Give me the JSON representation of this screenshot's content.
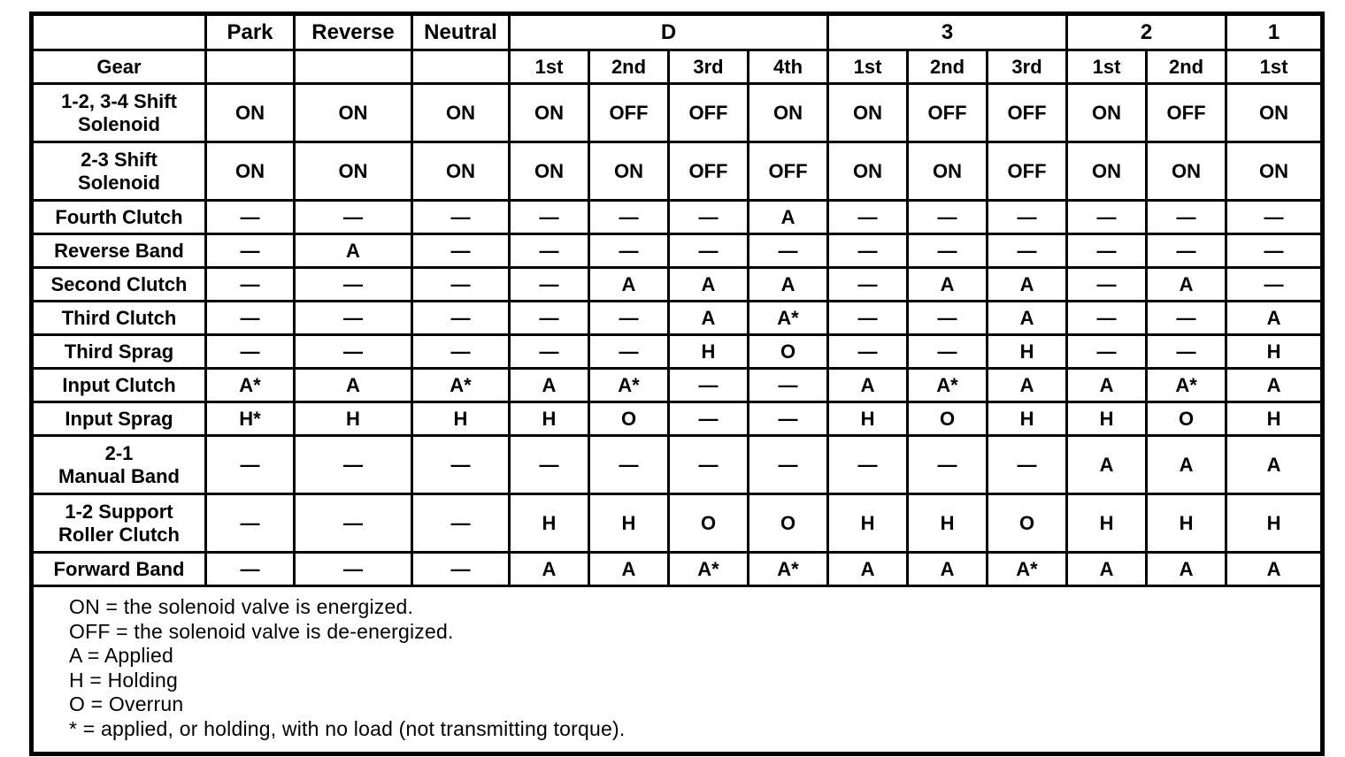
{
  "table": {
    "corner_label": "",
    "gear_label": "Gear",
    "range_groups": [
      {
        "label": "Park",
        "span": 1
      },
      {
        "label": "Reverse",
        "span": 1
      },
      {
        "label": "Neutral",
        "span": 1
      },
      {
        "label": "D",
        "span": 4
      },
      {
        "label": "3",
        "span": 3
      },
      {
        "label": "2",
        "span": 2
      },
      {
        "label": "1",
        "span": 1
      }
    ],
    "gear_cells": [
      "1st",
      "2nd",
      "3rd",
      "4th",
      "1st",
      "2nd",
      "3rd",
      "1st",
      "2nd",
      "1st"
    ],
    "rows": [
      {
        "label": "1-2, 3-4 Shift\nSolenoid",
        "values": [
          "ON",
          "ON",
          "ON",
          "ON",
          "OFF",
          "OFF",
          "ON",
          "ON",
          "OFF",
          "OFF",
          "ON",
          "OFF",
          "ON"
        ]
      },
      {
        "label": "2-3 Shift\nSolenoid",
        "values": [
          "ON",
          "ON",
          "ON",
          "ON",
          "ON",
          "OFF",
          "OFF",
          "ON",
          "ON",
          "OFF",
          "ON",
          "ON",
          "ON"
        ]
      },
      {
        "label": "Fourth Clutch",
        "values": [
          "—",
          "—",
          "—",
          "—",
          "—",
          "—",
          "A",
          "—",
          "—",
          "—",
          "—",
          "—",
          "—"
        ]
      },
      {
        "label": "Reverse Band",
        "values": [
          "—",
          "A",
          "—",
          "—",
          "—",
          "—",
          "—",
          "—",
          "—",
          "—",
          "—",
          "—",
          "—"
        ]
      },
      {
        "label": "Second Clutch",
        "values": [
          "—",
          "—",
          "—",
          "—",
          "A",
          "A",
          "A",
          "—",
          "A",
          "A",
          "—",
          "A",
          "—"
        ]
      },
      {
        "label": "Third Clutch",
        "values": [
          "—",
          "—",
          "—",
          "—",
          "—",
          "A",
          "A*",
          "—",
          "—",
          "A",
          "—",
          "—",
          "A"
        ]
      },
      {
        "label": "Third Sprag",
        "values": [
          "—",
          "—",
          "—",
          "—",
          "—",
          "H",
          "O",
          "—",
          "—",
          "H",
          "—",
          "—",
          "H"
        ]
      },
      {
        "label": "Input Clutch",
        "values": [
          "A*",
          "A",
          "A*",
          "A",
          "A*",
          "—",
          "—",
          "A",
          "A*",
          "A",
          "A",
          "A*",
          "A"
        ]
      },
      {
        "label": "Input Sprag",
        "values": [
          "H*",
          "H",
          "H",
          "H",
          "O",
          "—",
          "—",
          "H",
          "O",
          "H",
          "H",
          "O",
          "H"
        ]
      },
      {
        "label": "2-1\nManual Band",
        "values": [
          "—",
          "—",
          "—",
          "—",
          "—",
          "—",
          "—",
          "—",
          "—",
          "—",
          "A",
          "A",
          "A"
        ]
      },
      {
        "label": "1-2 Support\nRoller Clutch",
        "values": [
          "—",
          "—",
          "—",
          "H",
          "H",
          "O",
          "O",
          "H",
          "H",
          "O",
          "H",
          "H",
          "H"
        ]
      },
      {
        "label": "Forward Band",
        "values": [
          "—",
          "—",
          "—",
          "A",
          "A",
          "A*",
          "A*",
          "A",
          "A",
          "A*",
          "A",
          "A",
          "A"
        ]
      }
    ]
  },
  "legend": [
    "ON = the solenoid valve is energized.",
    "OFF = the solenoid valve is de-energized.",
    "A = Applied",
    "H = Holding",
    "O = Overrun",
    "* = applied, or holding, with no load (not transmitting torque)."
  ]
}
